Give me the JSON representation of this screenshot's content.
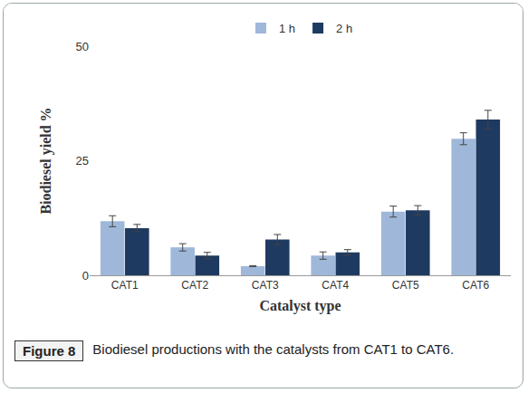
{
  "chart_data": {
    "type": "bar",
    "x_label": "Catalyst type",
    "y_label": "Biodiesel yield %",
    "categories": [
      "CAT1",
      "CAT2",
      "CAT3",
      "CAT4",
      "CAT5",
      "CAT6"
    ],
    "series": [
      {
        "name": "1 h",
        "color": "#9fb8da",
        "values": [
          11.8,
          6.1,
          2.0,
          4.3,
          13.9,
          29.8
        ],
        "errors": [
          1.2,
          0.8,
          0.1,
          0.8,
          1.2,
          1.3
        ]
      },
      {
        "name": "2 h",
        "color": "#1f3a60",
        "values": [
          10.3,
          4.3,
          7.8,
          5.0,
          14.2,
          34.0
        ],
        "errors": [
          0.8,
          0.7,
          1.1,
          0.6,
          1.0,
          2.0
        ]
      }
    ],
    "ylim": [
      0,
      50
    ],
    "yticks": [
      0,
      25,
      50
    ],
    "grid": false,
    "legend": "top",
    "figure_label": "Figure 8",
    "caption": "Biodiesel productions with the catalysts from CAT1 to CAT6."
  }
}
